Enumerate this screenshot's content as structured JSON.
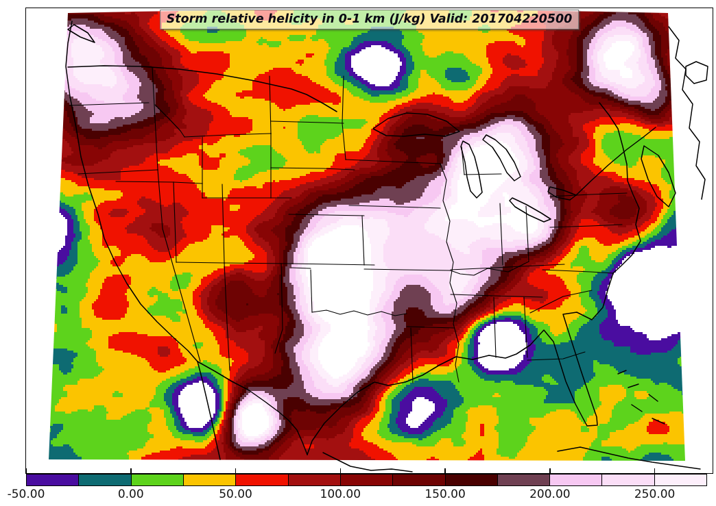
{
  "figure": {
    "title": "Storm relative helicity in 0-1 km (J/kg) Valid: 201704220500"
  },
  "chart_data": {
    "type": "heatmap",
    "subtype": "filled-contour-weather-map",
    "title": "Storm relative helicity in 0-1 km (J/kg) Valid: 201704220500",
    "variable": "Storm relative helicity in 0-1 km",
    "units": "J/kg",
    "valid_time": "201704220500",
    "map_region": "Continental United States with state borders, Great Lakes, Canada and Gulf/Caribbean coastlines",
    "colorbar": {
      "orientation": "horizontal",
      "position": "bottom",
      "tick_labels": [
        "-50.00",
        "0.00",
        "50.00",
        "100.00",
        "150.00",
        "200.00",
        "250.00"
      ],
      "tick_values": [
        -50,
        0,
        50,
        100,
        150,
        200,
        250
      ],
      "value_min": -50,
      "value_max": 275,
      "levels": [
        -50,
        -25,
        0,
        25,
        50,
        75,
        100,
        125,
        150,
        175,
        200,
        225,
        250,
        275
      ],
      "colors": [
        "#4a0da0",
        "#0e6b72",
        "#5dd31c",
        "#fbc400",
        "#f01200",
        "#a31010",
        "#880505",
        "#6e0303",
        "#4a0101",
        "#6f4052",
        "#f7c8f2",
        "#fbdef7",
        "#fdeffb"
      ],
      "under_color": "#ffffff",
      "over_color": "#ffffff"
    },
    "notable_features": [
      "Large off-scale (>275 J/kg, shown white) helicity maxima over the upper Midwest / Lake Michigan region, Kansas-Missouri, and Oklahoma-Texas, ringed by dark red and pink bands",
      "Pale pink high-value region over southeastern Canada / Maine (top right)",
      "Dark red (100-175 J/kg) bands over the Pacific Northwest, California coast, Ozarks-Tennessee valley and the Northeast",
      "Purple negative patches (< -25 J/kg) with white sub-range cores over southern Nevada and Mississippi/Alabama",
      "Broad green/gold (0-50 J/kg) background over oceans and Plains, teal patches (-25-0 J/kg) over the Atlantic, Gulf and upper Midwest"
    ]
  }
}
